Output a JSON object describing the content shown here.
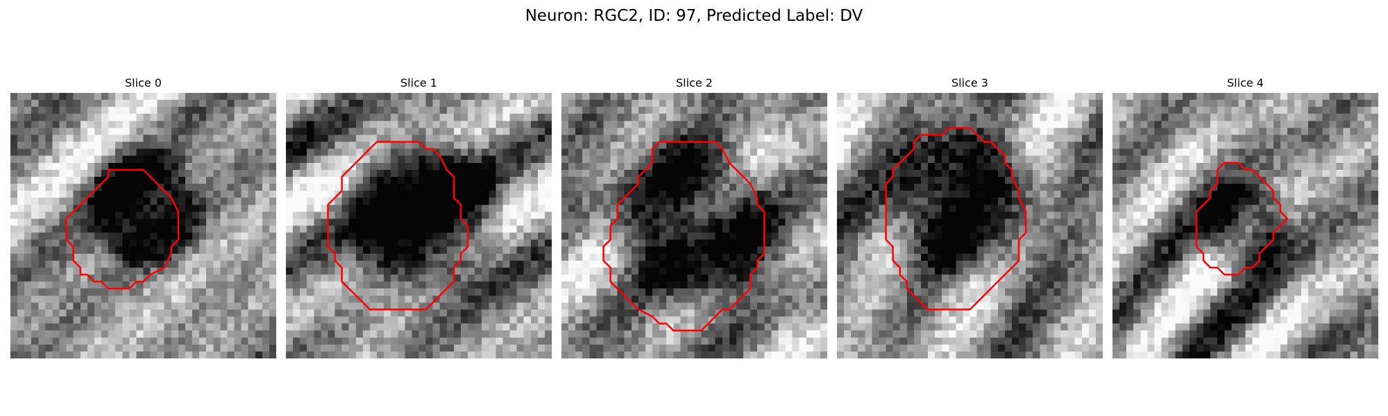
{
  "figure": {
    "title": "Neuron: RGC2, ID: 97, Predicted Label: DV"
  },
  "slices": [
    {
      "label": "Slice 0",
      "seed": 11,
      "blob": {
        "cx": 19,
        "cy": 16.5,
        "r": 8.5,
        "dark": 0.55
      },
      "contour": [
        [
          14,
          11
        ],
        [
          19,
          11
        ],
        [
          20,
          12
        ],
        [
          22,
          14
        ],
        [
          23,
          15
        ],
        [
          24,
          17
        ],
        [
          24,
          21
        ],
        [
          23,
          22
        ],
        [
          23,
          23
        ],
        [
          22,
          25
        ],
        [
          20,
          26
        ],
        [
          19,
          27
        ],
        [
          18,
          27
        ],
        [
          17,
          28
        ],
        [
          14,
          28
        ],
        [
          13,
          27
        ],
        [
          12,
          27
        ],
        [
          11,
          26
        ],
        [
          10,
          26
        ],
        [
          10,
          25
        ],
        [
          9,
          24
        ],
        [
          9,
          22
        ],
        [
          8,
          21
        ],
        [
          8,
          18
        ],
        [
          9,
          17
        ],
        [
          10,
          16
        ],
        [
          11,
          15
        ],
        [
          12,
          14
        ],
        [
          13,
          13
        ],
        [
          14,
          12
        ]
      ],
      "outline_color": "#ff0000"
    },
    {
      "label": "Slice 1",
      "seed": 23,
      "blob": {
        "cx": 19.5,
        "cy": 17.5,
        "r": 11,
        "dark": 0.6
      },
      "contour": [
        [
          13,
          7
        ],
        [
          19,
          7
        ],
        [
          20,
          8
        ],
        [
          21,
          8
        ],
        [
          22,
          9
        ],
        [
          23,
          11
        ],
        [
          24,
          12
        ],
        [
          24,
          13
        ],
        [
          24,
          15
        ],
        [
          25,
          16
        ],
        [
          25,
          18
        ],
        [
          26,
          19
        ],
        [
          26,
          22
        ],
        [
          25,
          23
        ],
        [
          25,
          24
        ],
        [
          24,
          25
        ],
        [
          24,
          27
        ],
        [
          23,
          28
        ],
        [
          22,
          29
        ],
        [
          21,
          30
        ],
        [
          20,
          31
        ],
        [
          16,
          31
        ],
        [
          12,
          31
        ],
        [
          11,
          30
        ],
        [
          10,
          29
        ],
        [
          9,
          28
        ],
        [
          8,
          27
        ],
        [
          8,
          25
        ],
        [
          7,
          24
        ],
        [
          7,
          23
        ],
        [
          6,
          22
        ],
        [
          6,
          21
        ],
        [
          6,
          17
        ],
        [
          6,
          16
        ],
        [
          7,
          15
        ],
        [
          8,
          14
        ],
        [
          8,
          12
        ],
        [
          9,
          11
        ],
        [
          10,
          10
        ],
        [
          11,
          9
        ],
        [
          12,
          8
        ]
      ],
      "outline_color": "#ff0000"
    },
    {
      "label": "Slice 2",
      "seed": 37,
      "blob": {
        "cx": 19,
        "cy": 18.5,
        "r": 11.5,
        "dark": 0.55
      },
      "contour": [
        [
          14,
          7
        ],
        [
          22,
          7
        ],
        [
          23,
          8
        ],
        [
          24,
          10
        ],
        [
          25,
          11
        ],
        [
          26,
          12
        ],
        [
          27,
          13
        ],
        [
          28,
          15
        ],
        [
          28,
          16
        ],
        [
          29,
          17
        ],
        [
          29,
          20
        ],
        [
          29,
          23
        ],
        [
          28,
          24
        ],
        [
          28,
          25
        ],
        [
          27,
          26
        ],
        [
          27,
          28
        ],
        [
          26,
          29
        ],
        [
          25,
          30
        ],
        [
          24,
          31
        ],
        [
          23,
          31
        ],
        [
          22,
          32
        ],
        [
          21,
          33
        ],
        [
          20,
          34
        ],
        [
          16,
          34
        ],
        [
          15,
          33
        ],
        [
          14,
          33
        ],
        [
          13,
          32
        ],
        [
          11,
          31
        ],
        [
          10,
          30
        ],
        [
          9,
          29
        ],
        [
          8,
          28
        ],
        [
          7,
          27
        ],
        [
          7,
          25
        ],
        [
          6,
          24
        ],
        [
          6,
          22
        ],
        [
          7,
          21
        ],
        [
          7,
          19
        ],
        [
          8,
          18
        ],
        [
          8,
          16
        ],
        [
          9,
          15
        ],
        [
          10,
          14
        ],
        [
          11,
          13
        ],
        [
          11,
          12
        ],
        [
          12,
          11
        ],
        [
          13,
          10
        ],
        [
          13,
          8
        ]
      ],
      "outline_color": "#ff0000"
    },
    {
      "label": "Slice 3",
      "seed": 53,
      "blob": {
        "cx": 18,
        "cy": 15.5,
        "r": 10.5,
        "dark": 0.55
      },
      "contour": [
        [
          12,
          6
        ],
        [
          15,
          6
        ],
        [
          16,
          5
        ],
        [
          19,
          5
        ],
        [
          20,
          6
        ],
        [
          21,
          7
        ],
        [
          22,
          7
        ],
        [
          23,
          8
        ],
        [
          24,
          9
        ],
        [
          24,
          10
        ],
        [
          25,
          11
        ],
        [
          25,
          12
        ],
        [
          26,
          14
        ],
        [
          26,
          15
        ],
        [
          27,
          17
        ],
        [
          27,
          20
        ],
        [
          26,
          21
        ],
        [
          26,
          24
        ],
        [
          25,
          25
        ],
        [
          24,
          26
        ],
        [
          23,
          27
        ],
        [
          22,
          28
        ],
        [
          21,
          29
        ],
        [
          20,
          30
        ],
        [
          19,
          31
        ],
        [
          14,
          31
        ],
        [
          13,
          31
        ],
        [
          12,
          30
        ],
        [
          11,
          29
        ],
        [
          10,
          28
        ],
        [
          10,
          27
        ],
        [
          9,
          26
        ],
        [
          9,
          25
        ],
        [
          8,
          24
        ],
        [
          8,
          23
        ],
        [
          8,
          22
        ],
        [
          7,
          21
        ],
        [
          7,
          16
        ],
        [
          7,
          13
        ],
        [
          8,
          12
        ],
        [
          8,
          11
        ],
        [
          9,
          10
        ],
        [
          10,
          9
        ],
        [
          11,
          8
        ],
        [
          11,
          7
        ]
      ],
      "outline_color": "#ff0000"
    },
    {
      "label": "Slice 4",
      "seed": 71,
      "blob": {
        "cx": 19,
        "cy": 19,
        "r": 6.5,
        "dark": 0.55
      },
      "contour": [
        [
          16,
          10
        ],
        [
          17,
          10
        ],
        [
          18,
          10
        ],
        [
          19,
          11
        ],
        [
          20,
          11
        ],
        [
          21,
          12
        ],
        [
          22,
          13
        ],
        [
          23,
          14
        ],
        [
          23,
          15
        ],
        [
          24,
          16
        ],
        [
          24,
          17
        ],
        [
          25,
          18
        ],
        [
          24,
          19
        ],
        [
          23,
          20
        ],
        [
          23,
          21
        ],
        [
          22,
          22
        ],
        [
          21,
          23
        ],
        [
          21,
          24
        ],
        [
          20,
          25
        ],
        [
          19,
          25
        ],
        [
          18,
          26
        ],
        [
          16,
          26
        ],
        [
          15,
          25
        ],
        [
          14,
          25
        ],
        [
          13,
          24
        ],
        [
          13,
          23
        ],
        [
          12,
          22
        ],
        [
          12,
          21
        ],
        [
          12,
          19
        ],
        [
          12,
          17
        ],
        [
          13,
          16
        ],
        [
          14,
          15
        ],
        [
          14,
          14
        ],
        [
          15,
          13
        ],
        [
          15,
          11
        ]
      ],
      "outline_color": "#ff0000"
    }
  ]
}
